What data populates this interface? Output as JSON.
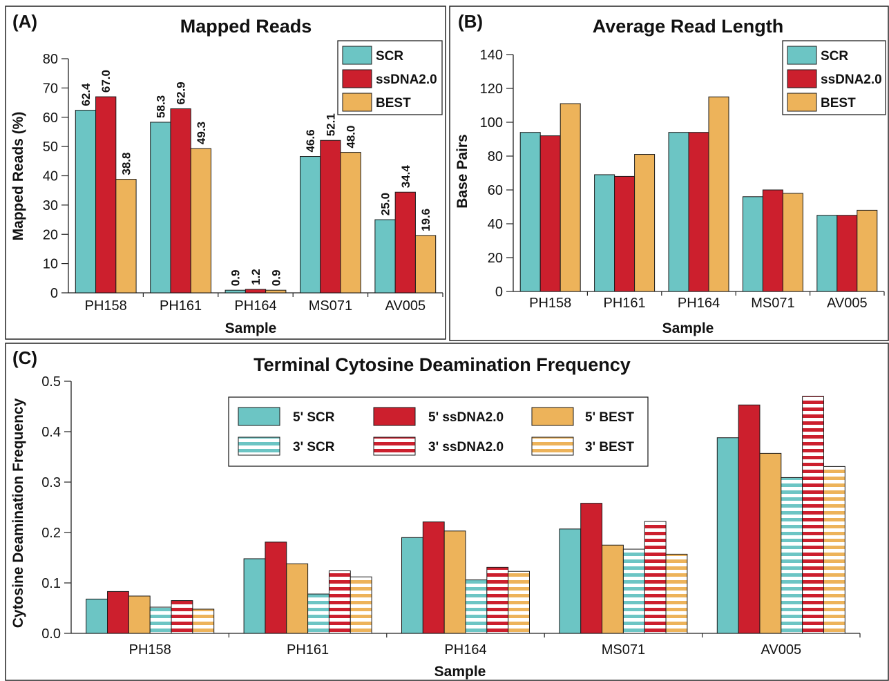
{
  "colors": {
    "SCR": "#6cc5c4",
    "ssDNA2.0": "#cc1f2d",
    "BEST": "#edb35a"
  },
  "chart_data": [
    {
      "panel": "(A)",
      "type": "bar",
      "title": "Mapped Reads",
      "xlabel": "Sample",
      "ylabel": "Mapped Reads (%)",
      "ylim": [
        0,
        80
      ],
      "yticks": [
        0,
        10,
        20,
        30,
        40,
        50,
        60,
        70,
        80
      ],
      "categories": [
        "PH158",
        "PH161",
        "PH164",
        "MS071",
        "AV005"
      ],
      "series": [
        {
          "name": "SCR",
          "values": [
            62.4,
            58.3,
            0.9,
            46.6,
            25.0
          ],
          "labels": [
            "62.4",
            "58.3",
            "0.9",
            "46.6",
            "25.0"
          ]
        },
        {
          "name": "ssDNA2.0",
          "values": [
            67.0,
            62.9,
            1.2,
            52.1,
            34.4
          ],
          "labels": [
            "67.0",
            "62.9",
            "1.2",
            "52.1",
            "34.4"
          ]
        },
        {
          "name": "BEST",
          "values": [
            38.8,
            49.3,
            0.9,
            48.0,
            19.6
          ],
          "labels": [
            "38.8",
            "49.3",
            "0.9",
            "48.0",
            "19.6"
          ]
        }
      ],
      "legend": "top-right"
    },
    {
      "panel": "(B)",
      "type": "bar",
      "title": "Average Read Length",
      "xlabel": "Sample",
      "ylabel": "Base Pairs",
      "ylim": [
        0,
        140
      ],
      "yticks": [
        0,
        20,
        40,
        60,
        80,
        100,
        120,
        140
      ],
      "categories": [
        "PH158",
        "PH161",
        "PH164",
        "MS071",
        "AV005"
      ],
      "series": [
        {
          "name": "SCR",
          "values": [
            94,
            69,
            94,
            56,
            45
          ]
        },
        {
          "name": "ssDNA2.0",
          "values": [
            92,
            68,
            94,
            60,
            45
          ]
        },
        {
          "name": "BEST",
          "values": [
            111,
            81,
            115,
            58,
            48
          ]
        }
      ],
      "legend": "top-right"
    },
    {
      "panel": "(C)",
      "type": "bar",
      "title": "Terminal Cytosine Deamination Frequency",
      "xlabel": "Sample",
      "ylabel": "Cytosine Deamination Frequency",
      "ylim": [
        0,
        0.5
      ],
      "yticks": [
        "0.0",
        "0.1",
        "0.2",
        "0.3",
        "0.4",
        "0.5"
      ],
      "categories": [
        "PH158",
        "PH161",
        "PH164",
        "MS071",
        "AV005"
      ],
      "series": [
        {
          "name": "5' SCR",
          "values": [
            0.068,
            0.148,
            0.19,
            0.207,
            0.388
          ]
        },
        {
          "name": "5' ssDNA2.0",
          "values": [
            0.083,
            0.181,
            0.221,
            0.258,
            0.453
          ]
        },
        {
          "name": "5' BEST",
          "values": [
            0.074,
            0.138,
            0.203,
            0.175,
            0.357
          ]
        },
        {
          "name": "3' SCR",
          "values": [
            0.052,
            0.078,
            0.106,
            0.167,
            0.309
          ]
        },
        {
          "name": "3' ssDNA2.0",
          "values": [
            0.065,
            0.124,
            0.131,
            0.222,
            0.47
          ]
        },
        {
          "name": "3' BEST",
          "values": [
            0.048,
            0.112,
            0.123,
            0.157,
            0.331
          ]
        }
      ],
      "legend": "top-center"
    }
  ]
}
